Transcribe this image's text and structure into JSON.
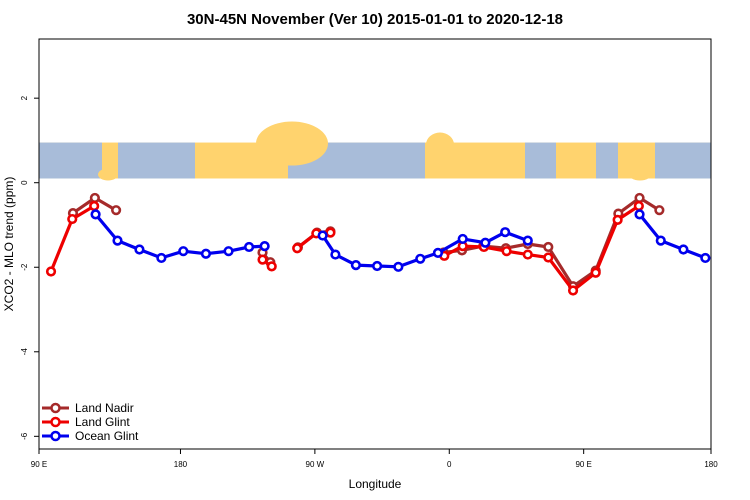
{
  "chart_data": {
    "type": "line",
    "title": "30N-45N November (Ver 10)   2015-01-01 to 2020-12-18",
    "xlabel": "Longitude",
    "ylabel": "XCO2 - MLO trend (ppm)",
    "xlim": [
      85,
      180
    ],
    "ylim": [
      -6.3,
      3.4
    ],
    "map_band": [
      0.1,
      0.95
    ],
    "x_ticks": [
      {
        "value": 85,
        "label": "90 E"
      },
      {
        "value": 105,
        "label": "180"
      },
      {
        "value": 124,
        "label": "90 W"
      },
      {
        "value": 143,
        "label": "0"
      },
      {
        "value": 162,
        "label": "90 E"
      },
      {
        "value": 180,
        "label": "180"
      }
    ],
    "y_ticks": [
      {
        "value": 2,
        "label": "2"
      },
      {
        "value": 0,
        "label": "0"
      },
      {
        "value": -2,
        "label": "-2"
      },
      {
        "value": -4,
        "label": "-4"
      },
      {
        "value": -6,
        "label": "-6"
      }
    ],
    "series": [
      {
        "name": "Land Nadir",
        "color": "#a52a2a",
        "segments": [
          [
            [
              89.8,
              -0.72
            ],
            [
              92.9,
              -0.36
            ],
            [
              95.9,
              -0.65
            ]
          ],
          [
            [
              116.6,
              -1.65
            ],
            [
              117.7,
              -1.88
            ]
          ],
          [
            [
              121.6,
              -1.53
            ],
            [
              124.3,
              -1.18
            ],
            [
              126.2,
              -1.15
            ]
          ],
          [
            [
              142.2,
              -1.65
            ],
            [
              144.8,
              -1.6
            ],
            [
              147.8,
              -1.5
            ],
            [
              151.0,
              -1.55
            ],
            [
              154.1,
              -1.45
            ],
            [
              157.0,
              -1.52
            ],
            [
              160.5,
              -2.45
            ],
            [
              163.7,
              -2.08
            ],
            [
              166.9,
              -0.73
            ],
            [
              169.9,
              -0.36
            ],
            [
              172.7,
              -0.65
            ]
          ]
        ]
      },
      {
        "name": "Land Glint",
        "color": "#ee0000",
        "segments": [
          [
            [
              86.7,
              -2.1
            ],
            [
              89.7,
              -0.86
            ],
            [
              92.8,
              -0.55
            ]
          ],
          [
            [
              116.6,
              -1.82
            ],
            [
              117.9,
              -1.98
            ]
          ],
          [
            [
              121.5,
              -1.55
            ],
            [
              124.2,
              -1.2
            ],
            [
              126.2,
              -1.18
            ]
          ],
          [
            [
              142.3,
              -1.73
            ],
            [
              144.9,
              -1.5
            ],
            [
              147.9,
              -1.52
            ],
            [
              151.1,
              -1.62
            ],
            [
              154.1,
              -1.7
            ],
            [
              157.0,
              -1.77
            ],
            [
              160.5,
              -2.55
            ],
            [
              163.7,
              -2.13
            ],
            [
              166.8,
              -0.88
            ],
            [
              169.8,
              -0.55
            ]
          ]
        ]
      },
      {
        "name": "Ocean Glint",
        "color": "#0000ee",
        "segments": [
          [
            [
              93.0,
              -0.75
            ],
            [
              96.1,
              -1.37
            ],
            [
              99.2,
              -1.58
            ],
            [
              102.3,
              -1.78
            ],
            [
              105.4,
              -1.62
            ],
            [
              108.6,
              -1.68
            ],
            [
              111.8,
              -1.62
            ],
            [
              114.7,
              -1.52
            ],
            [
              116.9,
              -1.5
            ]
          ],
          [
            [
              125.1,
              -1.25
            ],
            [
              126.9,
              -1.7
            ],
            [
              129.8,
              -1.95
            ],
            [
              132.8,
              -1.97
            ],
            [
              135.8,
              -1.99
            ],
            [
              138.9,
              -1.8
            ],
            [
              141.4,
              -1.66
            ],
            [
              144.9,
              -1.33
            ],
            [
              148.1,
              -1.42
            ],
            [
              150.9,
              -1.17
            ],
            [
              154.1,
              -1.37
            ]
          ],
          [
            [
              169.9,
              -0.75
            ],
            [
              172.9,
              -1.37
            ],
            [
              176.1,
              -1.58
            ],
            [
              179.2,
              -1.78
            ]
          ]
        ]
      }
    ],
    "legend": {
      "position": "bottom-left",
      "entries": [
        "Land Nadir",
        "Land Glint",
        "Ocean Glint"
      ]
    }
  },
  "colors": {
    "land": "#ffd36e",
    "ocean": "#a8bcd9"
  }
}
